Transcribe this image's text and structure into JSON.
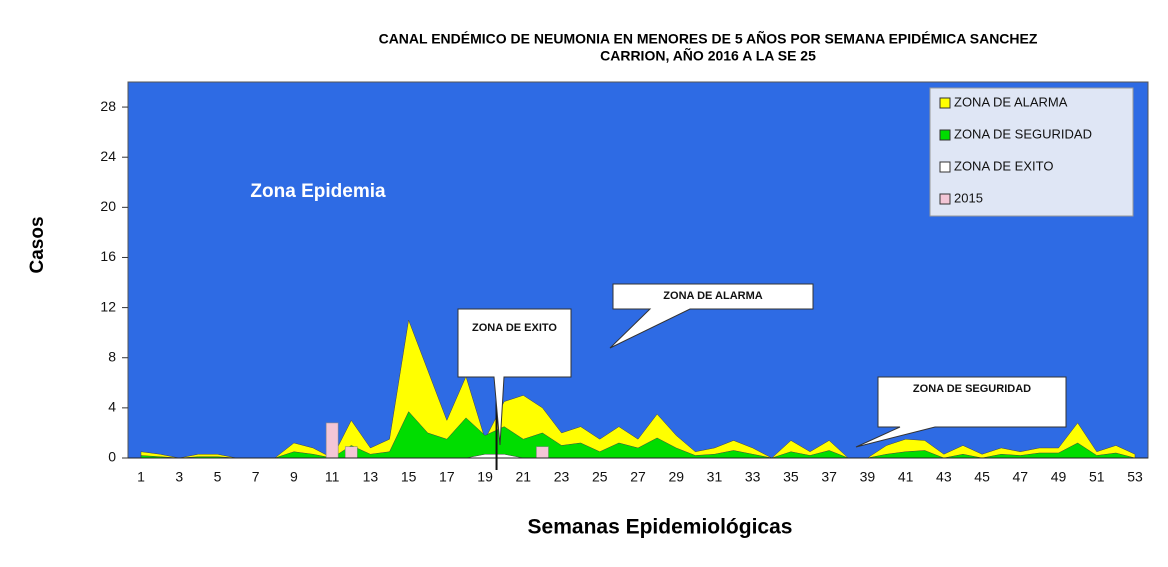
{
  "chart_data": {
    "type": "area",
    "title_lines": [
      "CANAL ENDÉMICO  DE  NEUMONIA  EN  MENORES  DE  5 AÑOS  POR  SEMANA  EPIDÉMICA  SANCHEZ",
      "CARRION,  AÑO 2016 A LA SE 25"
    ],
    "y_label": "Casos",
    "x_label": "Semanas Epidemiológicas",
    "background_label": "Zona Epidemia",
    "background_color": "#2e6be4",
    "annotations": [
      "ZONA DE EXITO",
      "ZONA DE ALARMA",
      "ZONA DE SEGURIDAD"
    ],
    "categories": [
      "1",
      null,
      "3",
      null,
      "5",
      null,
      "7",
      null,
      "9",
      null,
      "11",
      null,
      "13",
      null,
      "15",
      null,
      "17",
      null,
      "19",
      null,
      "21",
      null,
      "23",
      null,
      "25",
      null,
      "27",
      null,
      "29",
      null,
      "31",
      null,
      "33",
      null,
      "35",
      null,
      "37",
      null,
      "39",
      null,
      "41",
      null,
      "43",
      null,
      "45",
      null,
      "47",
      null,
      "49",
      null,
      "51",
      null,
      "53"
    ],
    "ylim": [
      0,
      30
    ],
    "yticks": [
      0,
      4,
      8,
      12,
      16,
      20,
      24,
      28
    ],
    "series": [
      {
        "name": "ZONA DE ALARMA",
        "color": "#ffff00",
        "values": [
          0.5,
          0.3,
          0,
          0.3,
          0.3,
          0,
          0,
          0,
          1.2,
          0.8,
          0,
          3,
          0.8,
          1.5,
          11,
          7,
          3,
          6.5,
          1.5,
          4.5,
          5,
          4,
          2,
          2.5,
          1.5,
          2.5,
          1.5,
          3.5,
          1.8,
          0.5,
          0.8,
          1.4,
          0.8,
          0,
          1.4,
          0.5,
          1.4,
          0,
          0,
          1,
          1.5,
          1.4,
          0.3,
          1,
          0.3,
          0.8,
          0.5,
          0.8,
          0.8,
          2.8,
          0.5,
          1,
          0.3
        ]
      },
      {
        "name": "ZONA DE SEGURIDAD",
        "color": "#00dd00",
        "values": [
          0.2,
          0.1,
          0,
          0.1,
          0.1,
          0,
          0,
          0,
          0.5,
          0.3,
          0,
          1,
          0.3,
          0.5,
          3.7,
          2,
          1.5,
          3.2,
          1.8,
          2.5,
          1.5,
          2,
          1,
          1.2,
          0.5,
          1.2,
          0.8,
          1.6,
          0.8,
          0.2,
          0.3,
          0.6,
          0.3,
          0,
          0.5,
          0.2,
          0.6,
          0,
          0,
          0.3,
          0.5,
          0.6,
          0,
          0.3,
          0,
          0.3,
          0.2,
          0.4,
          0.4,
          1.2,
          0.2,
          0.4,
          0
        ]
      },
      {
        "name": "ZONA DE EXITO",
        "color": "#ffffff",
        "values": [
          0,
          0,
          0,
          0,
          0,
          0,
          0,
          0,
          0,
          0,
          0,
          0,
          0,
          0,
          0,
          0,
          0,
          0,
          0.3,
          0.3,
          0,
          0,
          0,
          0,
          0,
          0,
          0,
          0,
          0,
          0,
          0,
          0,
          0,
          0,
          0,
          0,
          0,
          0,
          0,
          0,
          0,
          0,
          0,
          0,
          0,
          0,
          0,
          0,
          0,
          0,
          0,
          0,
          0
        ]
      },
      {
        "name": "2015",
        "color": "#f3c6d6",
        "bar": true,
        "values": [
          0,
          0,
          0,
          0,
          0,
          0,
          0,
          0,
          0,
          0,
          2.8,
          0.9,
          0,
          0,
          0,
          0,
          0,
          0,
          0,
          0,
          0,
          0.9,
          0,
          0,
          0,
          0,
          0,
          0,
          0,
          0,
          0,
          0,
          0,
          0,
          0,
          0,
          0,
          0,
          0,
          0,
          0,
          0,
          0,
          0,
          0,
          0,
          0,
          0,
          0,
          0,
          0,
          0,
          0
        ]
      }
    ]
  }
}
